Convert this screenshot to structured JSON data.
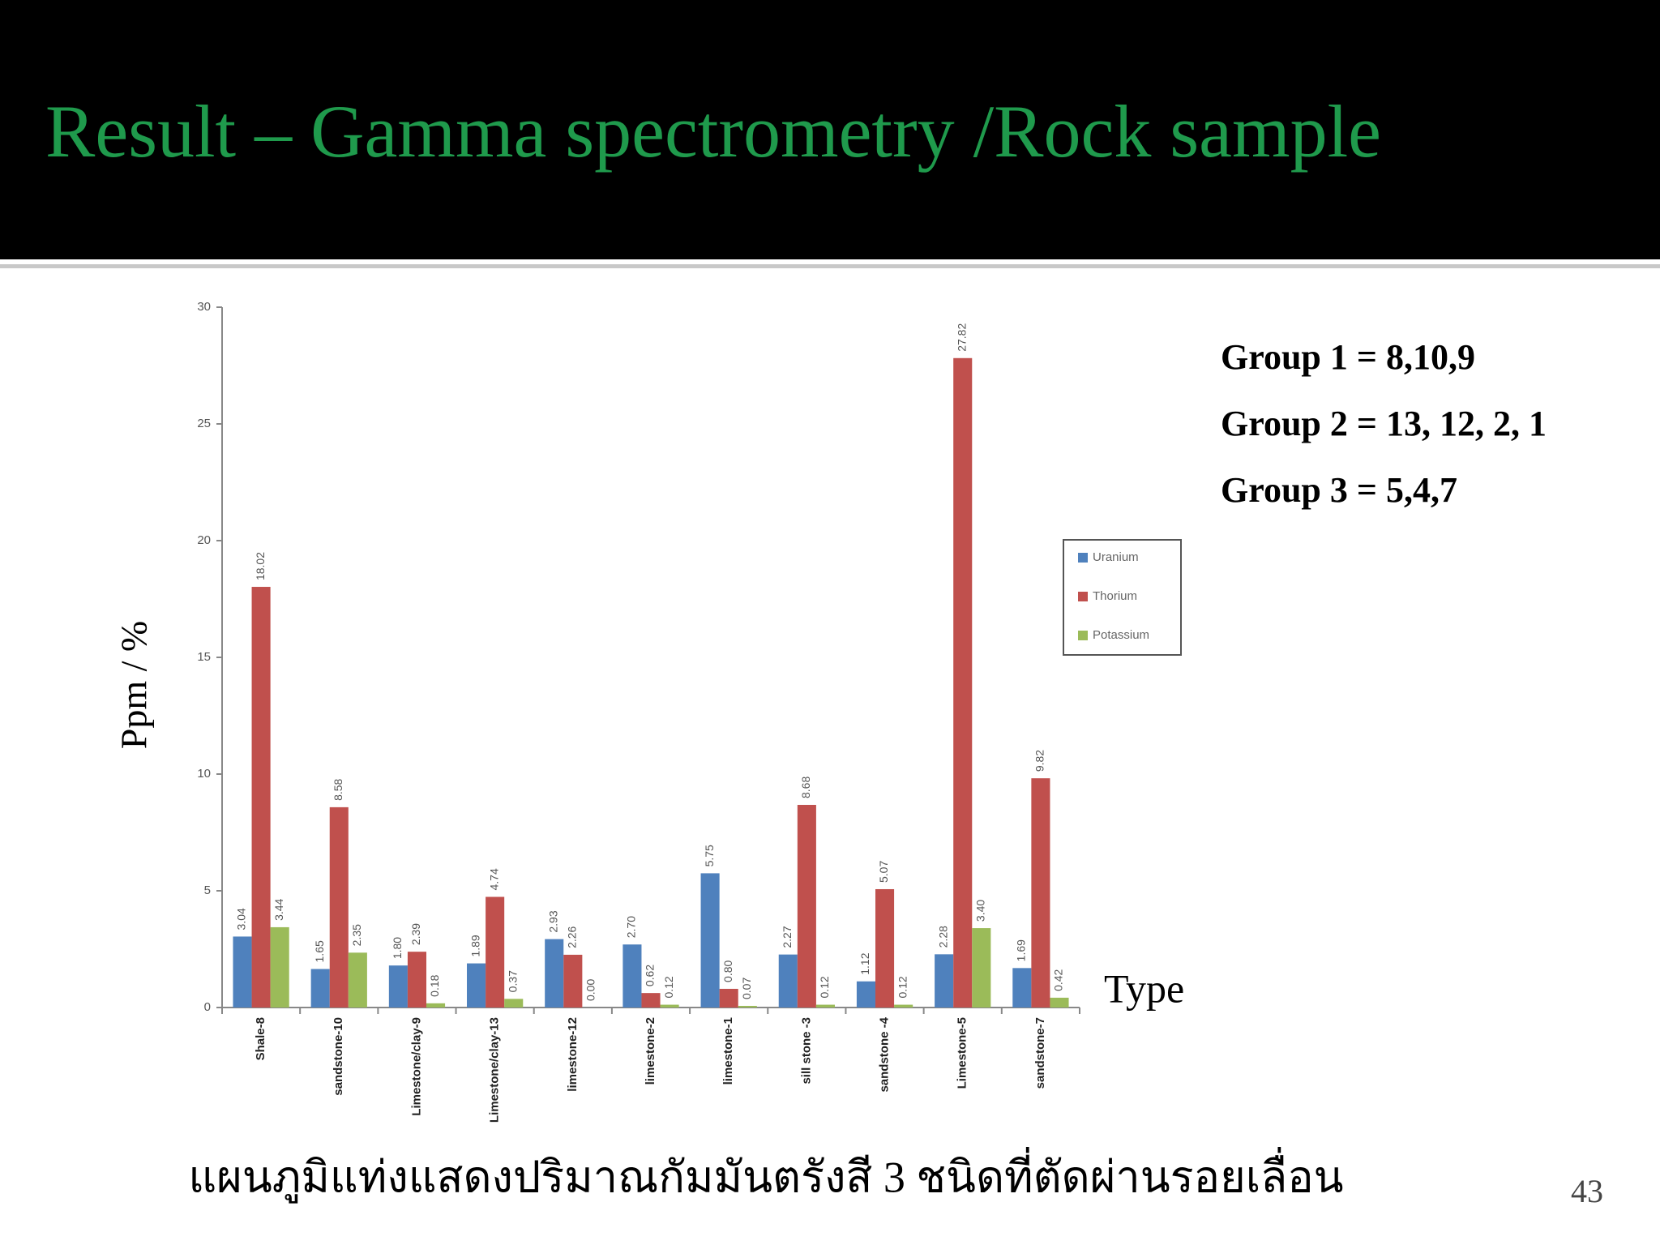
{
  "slide": {
    "title": "Result – Gamma spectrometry /Rock sample",
    "caption": "แผนภูมิแท่งแสดงปริมาณกัมมันตรังสี 3 ชนิดที่ตัดผ่านรอยเลื่อน",
    "page_number": "43",
    "groups": [
      "Group 1 = 8,10,9",
      "Group 2 = 13, 12, 2, 1",
      "Group 3 = 5,4,7"
    ]
  },
  "chart_data": {
    "type": "bar",
    "y_label": "Ppm / %",
    "x_label": "Type",
    "categories": [
      "Shale-8",
      "sandstone-10",
      "Limestone/clay-9",
      "Limestone/clay-13",
      "limestone-12",
      "limestone-2",
      "limestone-1",
      "sill stone -3",
      "sandstone -4",
      "Limestone-5",
      "sandstone-7"
    ],
    "series": [
      {
        "name": "Uranium",
        "color": "#4f81bd",
        "values": [
          3.04,
          1.65,
          1.8,
          1.89,
          2.93,
          2.7,
          5.75,
          2.27,
          1.12,
          2.28,
          1.69
        ],
        "value_labels": [
          "3.04",
          "1.65",
          "1.80",
          "1.89",
          "2.93",
          "2.70",
          "5.75",
          "2.27",
          "1.12",
          "2.28",
          "1.69"
        ]
      },
      {
        "name": "Thorium",
        "color": "#c0504d",
        "values": [
          18.02,
          8.58,
          2.39,
          4.74,
          2.26,
          0.62,
          0.8,
          8.68,
          5.07,
          27.82,
          9.82
        ],
        "value_labels": [
          "18.02",
          "8.58",
          "2.39",
          "4.74",
          "2.26",
          "0.62",
          "0.80",
          "8.68",
          "5.07",
          "27.82",
          "9.82"
        ]
      },
      {
        "name": "Potassium",
        "color": "#9bbb59",
        "values": [
          3.44,
          2.35,
          0.18,
          0.37,
          0,
          0.12,
          0.07,
          0.12,
          0.12,
          3.4,
          0.42
        ],
        "value_labels": [
          "3.44",
          "2.35",
          "0.18",
          "0.37",
          "0.00",
          "0.12",
          "0.07",
          "0.12",
          "0.12",
          "3.40",
          "0.42"
        ]
      }
    ],
    "ylim": [
      0,
      30
    ],
    "yticks": [
      0,
      5,
      10,
      15,
      20,
      25,
      30
    ],
    "grid": false
  }
}
